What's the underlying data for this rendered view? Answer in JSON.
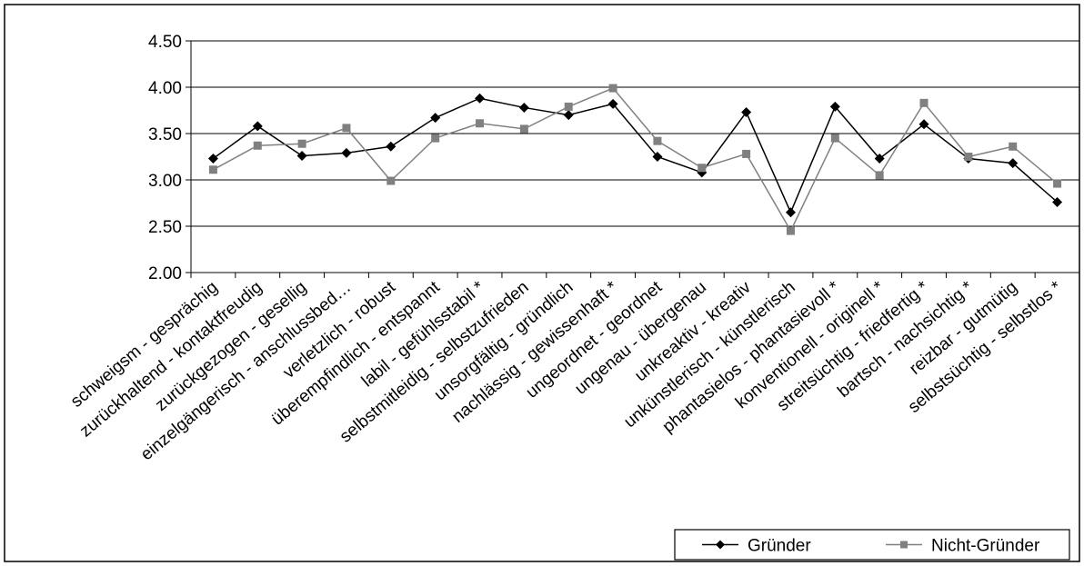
{
  "chart_data": {
    "type": "line",
    "categories": [
      "schweigsm - gesprächig",
      "zurückhaltend - kontaktfreudig",
      "zurückgezogen - gesellig",
      "einzelgängerisch - anschlussbed…",
      "verletzlich - robust",
      "überempfindlich - entspannt",
      "labil - gefühlsstabil *",
      "selbstmitleidig - selbstzufrieden",
      "unsorgfältig - gründlich",
      "nachlässig - gewissenhaft *",
      "ungeordnet - geordnet",
      "ungenau - übergenau",
      "unkreaktiv - kreativ",
      "unkünstlerisch - künstlerisch",
      "phantasielos - phantasievoll *",
      "konventionell - originell *",
      "streitsüchtig - friedfertig *",
      "bartsch - nachsichtig *",
      "reizbar - gutmütig",
      "selbstsüchtig - selbstlos *"
    ],
    "series": [
      {
        "name": "Gründer",
        "color": "#000000",
        "marker": "diamond",
        "values": [
          3.23,
          3.58,
          3.26,
          3.29,
          3.36,
          3.67,
          3.88,
          3.78,
          3.7,
          3.82,
          3.25,
          3.08,
          3.73,
          2.65,
          3.79,
          3.23,
          3.6,
          3.23,
          3.18,
          2.76
        ]
      },
      {
        "name": "Nicht-Gründer",
        "color": "#808080",
        "marker": "square",
        "values": [
          3.11,
          3.37,
          3.39,
          3.56,
          2.99,
          3.45,
          3.61,
          3.55,
          3.79,
          3.99,
          3.42,
          3.13,
          3.28,
          2.45,
          3.45,
          3.05,
          3.83,
          3.25,
          3.36,
          2.96
        ]
      }
    ],
    "ylim": [
      2.0,
      4.5
    ],
    "yticks": [
      "2.00",
      "2.50",
      "3.00",
      "3.50",
      "4.00",
      "4.50"
    ],
    "grid": true,
    "legend_position": "bottom-right"
  }
}
